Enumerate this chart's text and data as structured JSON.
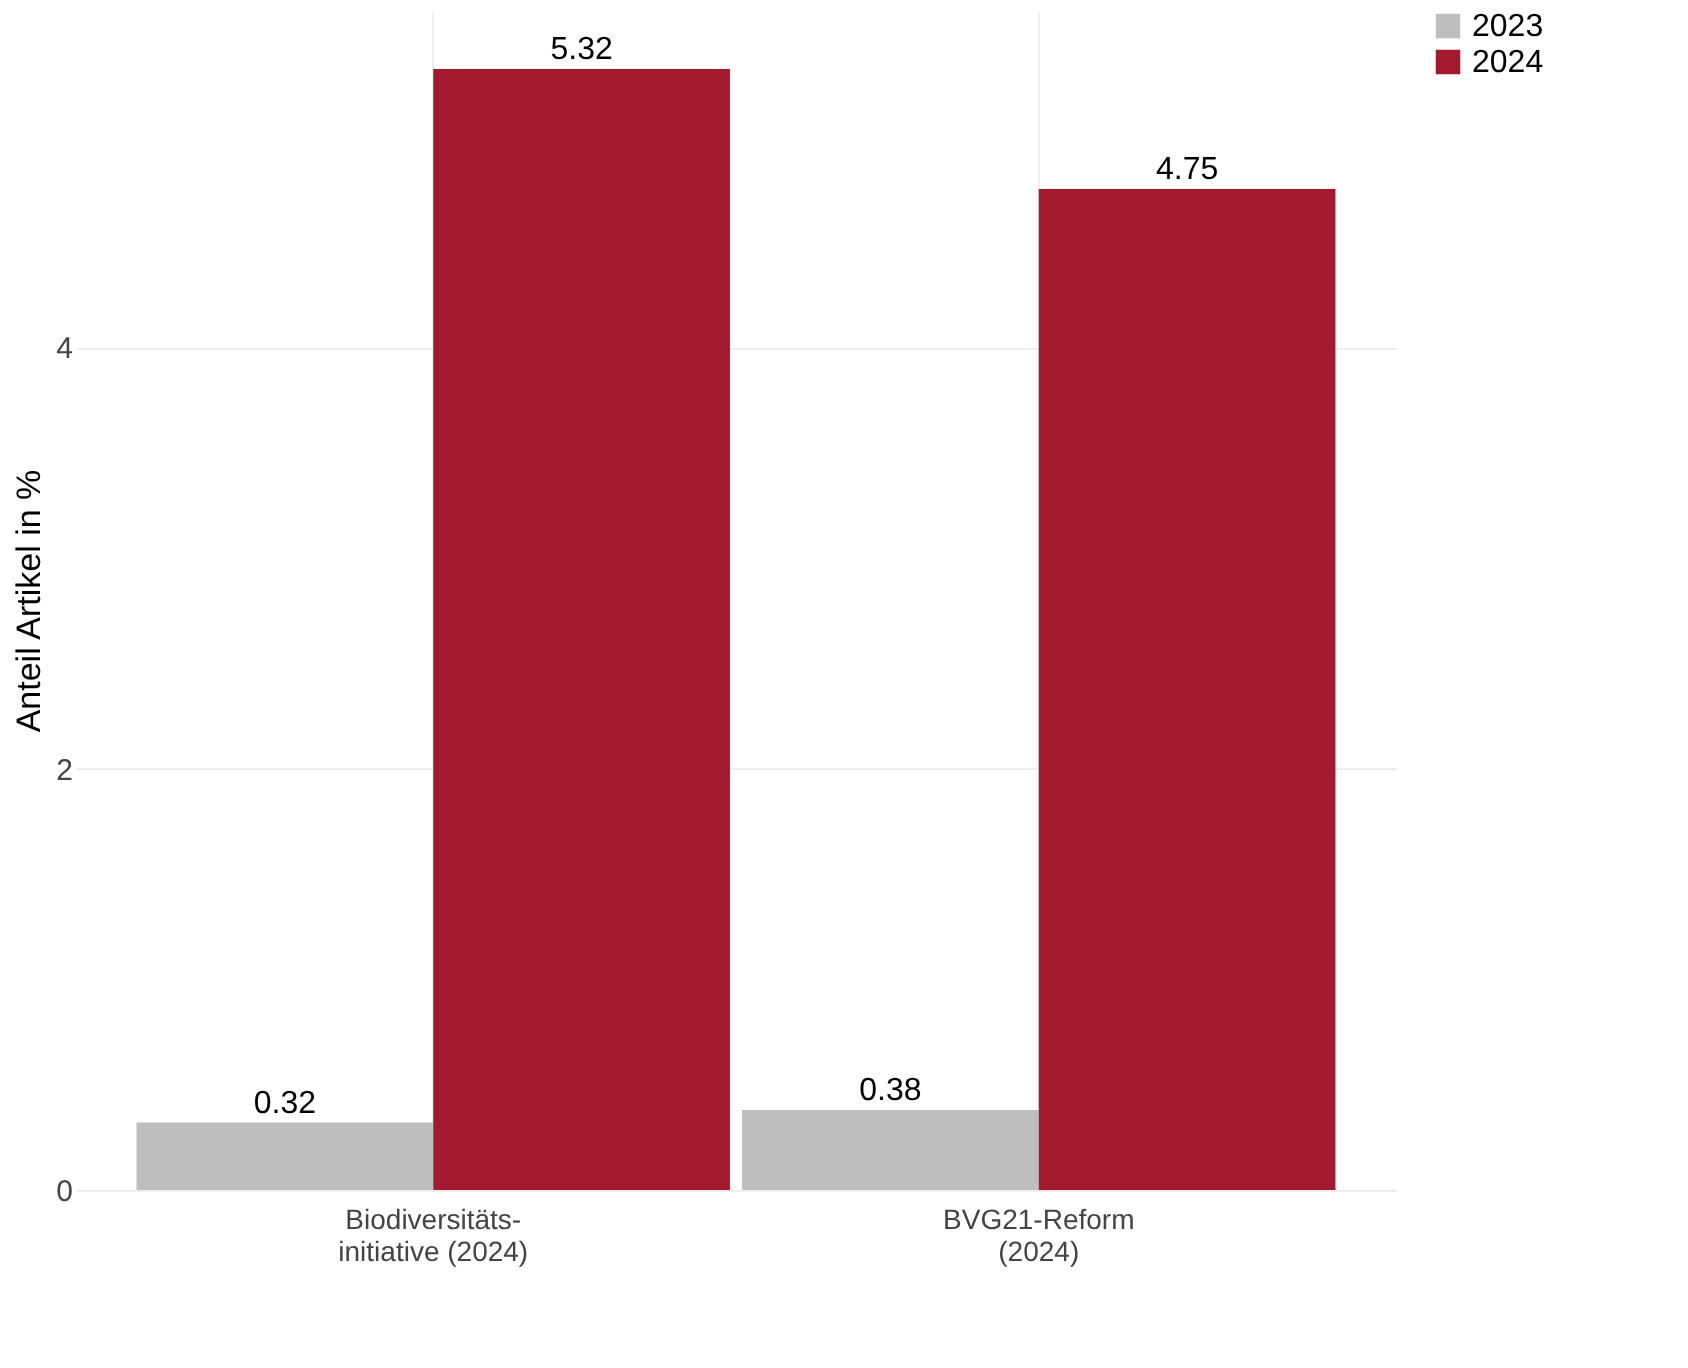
{
  "chart_data": {
    "type": "bar",
    "ylabel": "Anteil Artikel in %",
    "categories": [
      "Biodiversitäts-\ninitiative (2024)",
      "BVG21-Reform\n(2024)"
    ],
    "series": [
      {
        "name": "2023",
        "color": "#bebebe",
        "values": [
          0.32,
          0.38
        ]
      },
      {
        "name": "2024",
        "color": "#a31a2e",
        "values": [
          5.32,
          4.75
        ]
      }
    ],
    "ylim": [
      0,
      5.6
    ],
    "yticks": [
      0,
      2,
      4
    ],
    "grid": true,
    "legend": "top right",
    "data_labels": true
  }
}
